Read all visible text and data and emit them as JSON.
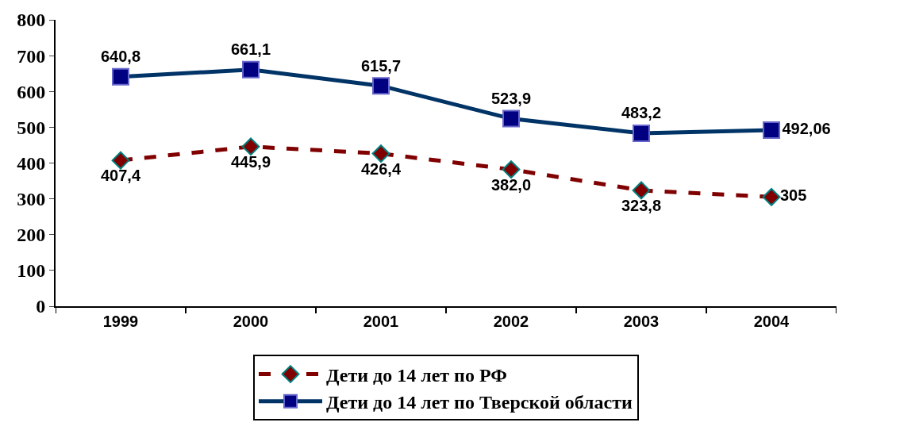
{
  "chart_data": {
    "type": "line",
    "categories": [
      "1999",
      "2000",
      "2001",
      "2002",
      "2003",
      "2004"
    ],
    "series": [
      {
        "name": "Дети до 14 лет по РФ",
        "color": "#800000",
        "values": [
          407.4,
          445.9,
          426.4,
          382.0,
          323.8,
          305
        ],
        "value_labels": [
          "407,4",
          "445,9",
          "426,4",
          "382,0",
          "323,8",
          "305"
        ],
        "marker": "diamond",
        "line_style": "dashed"
      },
      {
        "name": "Дети до 14 лет по Тверской области",
        "color": "#003366",
        "values": [
          640.8,
          661.1,
          615.7,
          523.9,
          483.2,
          492.06
        ],
        "value_labels": [
          "640,8",
          "661,1",
          "615,7",
          "523,9",
          "483,2",
          "492,06"
        ],
        "marker": "square",
        "line_style": "solid"
      }
    ],
    "ylim": [
      0,
      800
    ],
    "yticks": [
      0,
      100,
      200,
      300,
      400,
      500,
      600,
      700,
      800
    ],
    "legend": "bottom"
  }
}
